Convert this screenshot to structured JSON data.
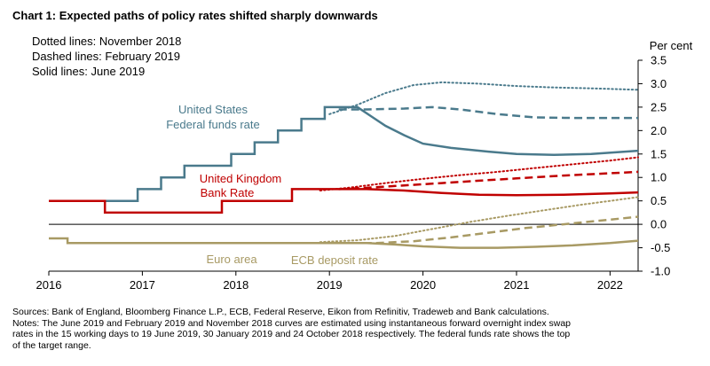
{
  "title": "Chart 1:  Expected paths of policy rates shifted sharply downwards",
  "notes": {
    "dotted": "Dotted lines: November 2018",
    "dashed": "Dashed lines: February 2019",
    "solid": "Solid lines: June 2019"
  },
  "footnotes": [
    "Sources:  Bank of England, Bloomberg Finance L.P., ECB, Federal Reserve, Eikon from Refinitiv, Tradeweb and Bank calculations.",
    "Notes:  The June 2019 and February 2019 and November 2018 curves are estimated using instantaneous forward overnight index swap",
    "rates in the 15 working days to 19 June 2019, 30 January 2019 and 24 October 2018 respectively.  The federal funds rate shows the top",
    "of the target range."
  ],
  "colors": {
    "us": "#4a7a8c",
    "uk": "#c00000",
    "ea": "#a89a64"
  },
  "chart_data": {
    "type": "line",
    "xlim": [
      2016,
      2022.3
    ],
    "ylim": [
      -1.0,
      3.5
    ],
    "ylabel": "Per cent",
    "x_ticks": [
      "2016",
      "2017",
      "2018",
      "2019",
      "2020",
      "2021",
      "2022"
    ],
    "x_tick_values": [
      2016,
      2017,
      2018,
      2019,
      2020,
      2021,
      2022
    ],
    "y_ticks": [
      "3.5",
      "3.0",
      "2.5",
      "2.0",
      "1.5",
      "1.0",
      "0.5",
      "0.0",
      "-0.5",
      "-1.0"
    ],
    "y_tick_values": [
      3.5,
      3.0,
      2.5,
      2.0,
      1.5,
      1.0,
      0.5,
      0.0,
      -0.5,
      -1.0
    ],
    "grid": false,
    "series": [
      {
        "name": "United States Federal funds rate",
        "key": "us",
        "style": "solid",
        "x": [
          2016,
          2016.95,
          2016.95,
          2017.2,
          2017.2,
          2017.45,
          2017.45,
          2017.95,
          2017.95,
          2018.2,
          2018.2,
          2018.45,
          2018.45,
          2018.7,
          2018.7,
          2018.95,
          2018.95,
          2019.1,
          2019.3,
          2019.45,
          2019.6,
          2019.8,
          2020.0,
          2020.3,
          2020.7,
          2021.0,
          2021.4,
          2021.8,
          2022.3
        ],
        "y": [
          0.5,
          0.5,
          0.75,
          0.75,
          1.0,
          1.0,
          1.25,
          1.25,
          1.5,
          1.5,
          1.75,
          1.75,
          2.0,
          2.0,
          2.25,
          2.25,
          2.5,
          2.5,
          2.5,
          2.3,
          2.1,
          1.9,
          1.72,
          1.63,
          1.55,
          1.5,
          1.48,
          1.5,
          1.57
        ]
      },
      {
        "name": "",
        "key": "us",
        "style": "dashed",
        "x": [
          2019.1,
          2019.4,
          2019.8,
          2020.1,
          2020.4,
          2020.8,
          2021.2,
          2021.6,
          2022.0,
          2022.3
        ],
        "y": [
          2.45,
          2.45,
          2.47,
          2.5,
          2.45,
          2.35,
          2.28,
          2.27,
          2.27,
          2.27
        ]
      },
      {
        "name": "",
        "key": "us",
        "style": "dotted",
        "x": [
          2019.0,
          2019.3,
          2019.6,
          2019.9,
          2020.2,
          2020.6,
          2021.0,
          2021.4,
          2021.8,
          2022.3
        ],
        "y": [
          2.35,
          2.55,
          2.8,
          2.97,
          3.03,
          3.0,
          2.95,
          2.92,
          2.9,
          2.87
        ]
      },
      {
        "name": "United Kingdom Bank Rate",
        "key": "uk",
        "style": "solid",
        "x": [
          2016,
          2016.6,
          2016.6,
          2017.85,
          2017.85,
          2018.6,
          2018.6,
          2019.4,
          2019.8,
          2020.2,
          2020.6,
          2021.0,
          2021.5,
          2022.0,
          2022.3
        ],
        "y": [
          0.5,
          0.5,
          0.25,
          0.25,
          0.5,
          0.5,
          0.75,
          0.75,
          0.72,
          0.67,
          0.63,
          0.62,
          0.63,
          0.66,
          0.68
        ]
      },
      {
        "name": "",
        "key": "uk",
        "style": "dashed",
        "x": [
          2019.1,
          2019.4,
          2019.8,
          2020.2,
          2020.6,
          2021.0,
          2021.5,
          2022.0,
          2022.3
        ],
        "y": [
          0.75,
          0.78,
          0.83,
          0.88,
          0.93,
          0.98,
          1.04,
          1.09,
          1.12
        ]
      },
      {
        "name": "",
        "key": "uk",
        "style": "dotted",
        "x": [
          2018.9,
          2019.2,
          2019.6,
          2020.0,
          2020.4,
          2020.8,
          2021.2,
          2021.6,
          2022.0,
          2022.3
        ],
        "y": [
          0.72,
          0.78,
          0.88,
          0.97,
          1.05,
          1.12,
          1.2,
          1.28,
          1.36,
          1.43
        ]
      },
      {
        "name": "Euro area ECB deposit rate",
        "key": "ea",
        "style": "solid",
        "x": [
          2016,
          2016.2,
          2016.2,
          2019.4,
          2019.7,
          2020.0,
          2020.4,
          2020.8,
          2021.2,
          2021.6,
          2022.0,
          2022.3
        ],
        "y": [
          -0.3,
          -0.3,
          -0.4,
          -0.4,
          -0.43,
          -0.47,
          -0.5,
          -0.5,
          -0.48,
          -0.45,
          -0.4,
          -0.35
        ]
      },
      {
        "name": "",
        "key": "ea",
        "style": "dashed",
        "x": [
          2019.1,
          2019.5,
          2019.9,
          2020.3,
          2020.7,
          2021.1,
          2021.5,
          2021.9,
          2022.3
        ],
        "y": [
          -0.4,
          -0.4,
          -0.36,
          -0.28,
          -0.18,
          -0.08,
          0.0,
          0.08,
          0.16
        ]
      },
      {
        "name": "",
        "key": "ea",
        "style": "dotted",
        "x": [
          2018.9,
          2019.3,
          2019.7,
          2020.1,
          2020.5,
          2020.9,
          2021.3,
          2021.7,
          2022.0,
          2022.3
        ],
        "y": [
          -0.38,
          -0.34,
          -0.25,
          -0.1,
          0.05,
          0.18,
          0.3,
          0.42,
          0.5,
          0.58
        ]
      }
    ],
    "labels": {
      "us_line1": "United States",
      "us_line2": "Federal funds rate",
      "uk_line1": "United Kingdom",
      "uk_line2": "Bank Rate",
      "ea_area": "Euro area",
      "ea_rate": "ECB deposit rate"
    }
  }
}
